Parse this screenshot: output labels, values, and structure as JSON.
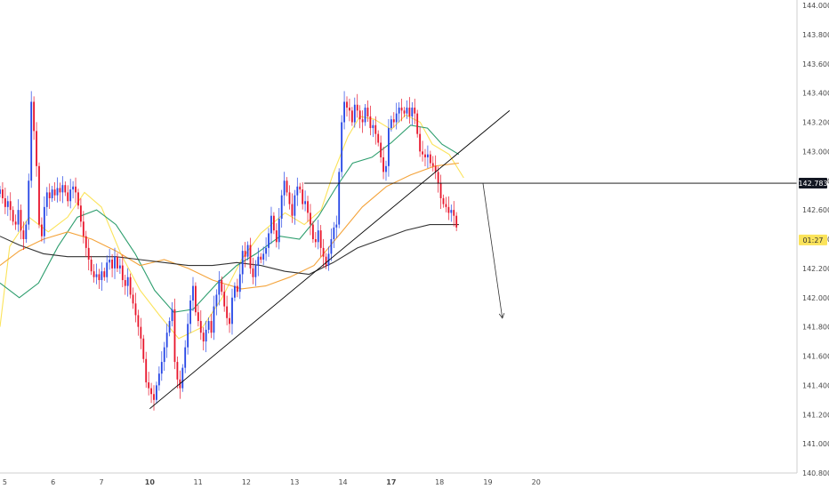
{
  "chart_data": {
    "type": "candlestick",
    "title": "",
    "xlabel": "",
    "ylabel": "",
    "ylim": [
      140.8,
      144.0
    ],
    "xlim": [
      4.9,
      21.4
    ],
    "grid": false,
    "y_ticks": [
      "144.000",
      "143.800",
      "143.600",
      "143.400",
      "143.200",
      "143.000",
      "142.800",
      "142.600",
      "142.400",
      "142.200",
      "142.000",
      "141.800",
      "141.600",
      "141.400",
      "141.200",
      "141.000",
      "140.800"
    ],
    "x_ticks": [
      {
        "value": 5,
        "label": "5",
        "bold": false
      },
      {
        "value": 6,
        "label": "6",
        "bold": false
      },
      {
        "value": 7,
        "label": "7",
        "bold": false
      },
      {
        "value": 8,
        "label": "10",
        "bold": true
      },
      {
        "value": 9,
        "label": "11",
        "bold": false
      },
      {
        "value": 10,
        "label": "12",
        "bold": false
      },
      {
        "value": 11,
        "label": "13",
        "bold": false
      },
      {
        "value": 12,
        "label": "14",
        "bold": false
      },
      {
        "value": 13,
        "label": "17",
        "bold": true
      },
      {
        "value": 14,
        "label": "18",
        "bold": false
      },
      {
        "value": 15,
        "label": "19",
        "bold": false
      },
      {
        "value": 16,
        "label": "20",
        "bold": false
      }
    ],
    "horizontal_level": {
      "value": 142.783,
      "label": "142.783"
    },
    "last_price_tag": {
      "value": 142.48,
      "label": "01:27"
    },
    "trendline": {
      "from": [
        8.0,
        141.24
      ],
      "to": [
        15.45,
        143.28
      ]
    },
    "arrow": {
      "from": [
        14.9,
        142.78
      ],
      "to": [
        15.3,
        141.86
      ]
    },
    "candles_close": [
      142.74,
      142.68,
      142.62,
      142.66,
      142.6,
      142.52,
      142.5,
      142.6,
      142.46,
      142.4,
      142.5,
      142.8,
      143.34,
      143.14,
      142.9,
      142.5,
      142.42,
      142.62,
      142.72,
      142.68,
      142.74,
      142.7,
      142.75,
      142.72,
      142.77,
      142.72,
      142.66,
      142.74,
      142.76,
      142.72,
      142.63,
      142.52,
      142.42,
      142.34,
      142.26,
      142.18,
      142.14,
      142.16,
      142.12,
      142.18,
      142.14,
      142.24,
      142.26,
      142.2,
      142.28,
      142.2,
      142.22,
      142.12,
      142.08,
      142.14,
      142.02,
      141.96,
      141.88,
      141.8,
      141.72,
      141.58,
      141.42,
      141.38,
      141.34,
      141.3,
      141.4,
      141.48,
      141.56,
      141.66,
      141.76,
      141.84,
      141.92,
      141.56,
      141.44,
      141.38,
      141.52,
      141.66,
      141.82,
      141.98,
      142.08,
      141.9,
      141.84,
      141.76,
      141.7,
      141.78,
      141.84,
      141.76,
      141.94,
      142.02,
      142.12,
      142.04,
      141.94,
      141.86,
      141.82,
      142.0,
      142.08,
      142.04,
      142.16,
      142.32,
      142.28,
      142.36,
      142.2,
      142.14,
      142.22,
      142.28,
      142.26,
      142.3,
      142.34,
      142.44,
      142.56,
      142.46,
      142.38,
      142.54,
      142.7,
      142.8,
      142.72,
      142.64,
      142.56,
      142.7,
      142.76,
      142.74,
      142.64,
      142.66,
      142.58,
      142.5,
      142.4,
      142.38,
      142.46,
      142.34,
      142.28,
      142.22,
      142.3,
      142.4,
      142.48,
      142.5,
      142.86,
      143.2,
      143.34,
      143.3,
      143.28,
      143.2,
      143.32,
      143.28,
      143.22,
      143.2,
      143.3,
      143.24,
      143.16,
      143.18,
      143.12,
      143.06,
      142.96,
      142.86,
      142.9,
      143.16,
      143.22,
      143.2,
      143.26,
      143.3,
      143.28,
      143.26,
      143.3,
      143.24,
      143.3,
      143.26,
      143.12,
      143.0,
      142.98,
      142.96,
      142.98,
      142.92,
      142.9,
      142.86,
      142.78,
      142.68,
      142.64,
      142.62,
      142.58,
      142.6,
      142.56,
      142.48
    ],
    "indicator_lines": [
      {
        "color": "#fbe35a",
        "points": [
          [
            4.9,
            141.8
          ],
          [
            5.1,
            142.35
          ],
          [
            5.5,
            142.55
          ],
          [
            5.9,
            142.45
          ],
          [
            6.3,
            142.55
          ],
          [
            6.65,
            142.72
          ],
          [
            7.0,
            142.62
          ],
          [
            7.4,
            142.3
          ],
          [
            7.8,
            142.05
          ],
          [
            8.2,
            141.88
          ],
          [
            8.6,
            141.72
          ],
          [
            9.1,
            141.8
          ],
          [
            9.5,
            142.0
          ],
          [
            9.9,
            142.26
          ],
          [
            10.3,
            142.44
          ],
          [
            10.8,
            142.58
          ],
          [
            11.2,
            142.5
          ],
          [
            11.55,
            142.6
          ],
          [
            11.8,
            142.85
          ],
          [
            12.1,
            143.1
          ],
          [
            12.35,
            143.24
          ],
          [
            12.65,
            143.22
          ],
          [
            13.0,
            143.15
          ],
          [
            13.3,
            143.25
          ],
          [
            13.6,
            143.2
          ],
          [
            13.85,
            143.05
          ],
          [
            14.2,
            142.98
          ],
          [
            14.5,
            142.82
          ]
        ]
      },
      {
        "color": "#2e9e6e",
        "points": [
          [
            4.9,
            142.1
          ],
          [
            5.3,
            142.0
          ],
          [
            5.7,
            142.1
          ],
          [
            6.1,
            142.35
          ],
          [
            6.5,
            142.55
          ],
          [
            6.9,
            142.6
          ],
          [
            7.3,
            142.5
          ],
          [
            7.7,
            142.3
          ],
          [
            8.1,
            142.05
          ],
          [
            8.5,
            141.9
          ],
          [
            8.9,
            141.92
          ],
          [
            9.4,
            142.1
          ],
          [
            9.8,
            142.22
          ],
          [
            10.2,
            142.3
          ],
          [
            10.7,
            142.42
          ],
          [
            11.1,
            142.4
          ],
          [
            11.5,
            142.56
          ],
          [
            11.85,
            142.75
          ],
          [
            12.2,
            142.92
          ],
          [
            12.6,
            142.96
          ],
          [
            13.0,
            143.06
          ],
          [
            13.4,
            143.18
          ],
          [
            13.75,
            143.16
          ],
          [
            14.05,
            143.05
          ],
          [
            14.4,
            142.98
          ]
        ]
      },
      {
        "color": "#f4a33a",
        "points": [
          [
            4.9,
            142.22
          ],
          [
            5.3,
            142.32
          ],
          [
            5.8,
            142.4
          ],
          [
            6.3,
            142.45
          ],
          [
            6.8,
            142.4
          ],
          [
            7.3,
            142.32
          ],
          [
            7.8,
            142.22
          ],
          [
            8.3,
            142.26
          ],
          [
            8.8,
            142.2
          ],
          [
            9.3,
            142.12
          ],
          [
            9.9,
            142.06
          ],
          [
            10.4,
            142.08
          ],
          [
            10.9,
            142.14
          ],
          [
            11.4,
            142.22
          ],
          [
            11.9,
            142.42
          ],
          [
            12.4,
            142.62
          ],
          [
            12.9,
            142.76
          ],
          [
            13.4,
            142.84
          ],
          [
            13.9,
            142.9
          ],
          [
            14.4,
            142.92
          ]
        ]
      },
      {
        "color": "#333333",
        "points": [
          [
            4.9,
            142.42
          ],
          [
            5.3,
            142.36
          ],
          [
            5.8,
            142.3
          ],
          [
            6.3,
            142.28
          ],
          [
            6.8,
            142.28
          ],
          [
            7.3,
            142.28
          ],
          [
            7.8,
            142.26
          ],
          [
            8.3,
            142.24
          ],
          [
            8.8,
            142.22
          ],
          [
            9.3,
            142.22
          ],
          [
            9.8,
            142.24
          ],
          [
            10.3,
            142.22
          ],
          [
            10.8,
            142.18
          ],
          [
            11.3,
            142.16
          ],
          [
            11.8,
            142.24
          ],
          [
            12.3,
            142.34
          ],
          [
            12.8,
            142.4
          ],
          [
            13.3,
            142.46
          ],
          [
            13.8,
            142.5
          ],
          [
            14.4,
            142.5
          ]
        ]
      }
    ]
  }
}
